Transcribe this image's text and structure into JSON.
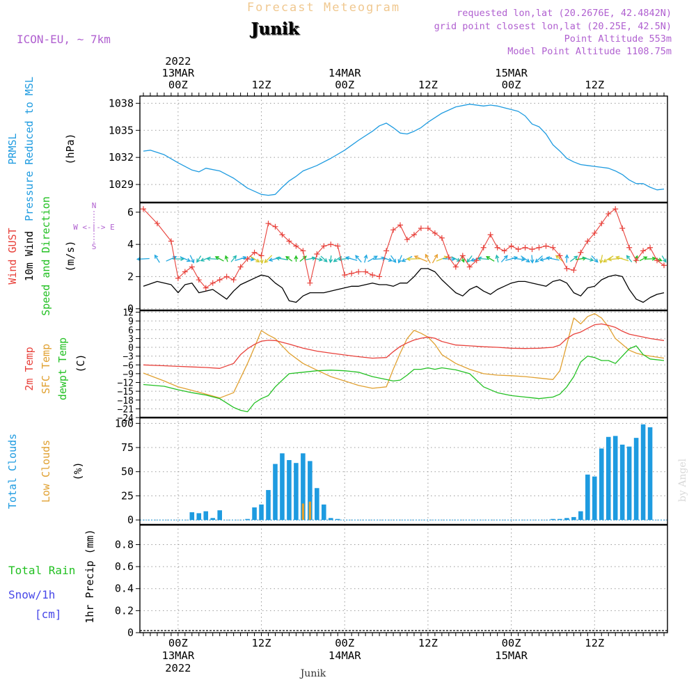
{
  "header": {
    "super_title": "Forecast Meteogram",
    "location": "Junik",
    "model": "ICON-EU, ~ 7km",
    "requested": "requested lon,lat (20.2676E, 42.4842N)",
    "grid_point": "grid point closest lon,lat (20.25E, 42.5N)",
    "point_altitude": "Point Altitude 553m",
    "model_altitude": "Model Point Altitude 1108.75m"
  },
  "time_axis": {
    "top_labels": [
      {
        "hour": 0,
        "lines": [
          "2022",
          "13MAR",
          "00Z"
        ]
      },
      {
        "hour": 12,
        "lines": [
          "12Z"
        ]
      },
      {
        "hour": 24,
        "lines": [
          "14MAR",
          "00Z"
        ]
      },
      {
        "hour": 36,
        "lines": [
          "12Z"
        ]
      },
      {
        "hour": 48,
        "lines": [
          "15MAR",
          "00Z"
        ]
      },
      {
        "hour": 60,
        "lines": [
          "12Z"
        ]
      }
    ],
    "bottom_labels": [
      {
        "hour": 0,
        "lines": [
          "00Z",
          "13MAR",
          "2022"
        ]
      },
      {
        "hour": 12,
        "lines": [
          "12Z"
        ]
      },
      {
        "hour": 24,
        "lines": [
          "00Z",
          "14MAR"
        ]
      },
      {
        "hour": 36,
        "lines": [
          "12Z"
        ]
      },
      {
        "hour": 48,
        "lines": [
          "00Z",
          "15MAR"
        ]
      },
      {
        "hour": 60,
        "lines": [
          "12Z"
        ]
      }
    ],
    "start_hour": -5.5,
    "end_hour": 70.5,
    "footer": "Junik"
  },
  "credit": "by Angel",
  "colors": {
    "pressure": "#1e9be0",
    "gust": "#e8403a",
    "wind": "#000000",
    "direction": "#22c022",
    "t2m": "#e8403a",
    "tsfc": "#e0a030",
    "dewpt": "#22c022",
    "total_clouds": "#1e9be0",
    "low_clouds": "#e0a030",
    "rain": "#22c022",
    "snow": "#4848e8",
    "header_purple": "#b060d0",
    "super_title": "#f0c890"
  },
  "panels": {
    "pressure": {
      "labels": [
        "PRMSL",
        "Pressure Reduced to MSL"
      ],
      "unit": "(hPa)"
    },
    "wind": {
      "labels": [
        "Wind GUST",
        "10m Wind",
        "Speed and Direction"
      ],
      "unit": "(m/s)",
      "compass": [
        "N",
        "W <-|-> E",
        "S"
      ]
    },
    "temp": {
      "labels": [
        "2m Temp",
        "SFC Temp",
        "dewpt Temp"
      ],
      "unit": "(C)"
    },
    "clouds": {
      "labels": [
        "Total Clouds",
        "Low Clouds"
      ],
      "unit": "(%)"
    },
    "precip": {
      "labels": [
        "Total  Rain",
        "Snow/1h",
        "[cm]"
      ],
      "unit": "1hr Precip (mm)"
    }
  },
  "chart_data": [
    {
      "type": "line",
      "name": "PRMSL",
      "ylabel": "(hPa)",
      "ylim": [
        1027,
        1038.8
      ],
      "yticks": [
        1029,
        1032,
        1035,
        1038
      ],
      "x": [
        -5,
        -4,
        -2,
        0,
        2,
        3,
        4,
        6,
        8,
        10,
        12,
        13,
        14,
        15,
        16,
        17,
        18,
        20,
        22,
        24,
        26,
        28,
        29,
        30,
        31,
        32,
        33,
        34,
        35,
        36,
        38,
        40,
        42,
        44,
        45,
        46,
        47,
        48,
        49,
        50,
        51,
        52,
        53,
        54,
        55,
        56,
        57,
        58,
        59,
        60,
        61,
        62,
        63,
        64,
        65,
        66,
        67,
        68,
        69,
        70
      ],
      "values": [
        1032.7,
        1032.8,
        1032.3,
        1031.4,
        1030.6,
        1030.4,
        1030.8,
        1030.5,
        1029.7,
        1028.6,
        1027.9,
        1027.8,
        1027.9,
        1028.7,
        1029.4,
        1029.9,
        1030.5,
        1031.1,
        1031.9,
        1032.8,
        1033.9,
        1034.9,
        1035.5,
        1035.8,
        1035.3,
        1034.7,
        1034.6,
        1034.9,
        1035.3,
        1035.9,
        1036.9,
        1037.6,
        1037.9,
        1037.7,
        1037.8,
        1037.7,
        1037.5,
        1037.3,
        1037.1,
        1036.6,
        1035.7,
        1035.4,
        1034.6,
        1033.4,
        1032.7,
        1031.9,
        1031.5,
        1031.2,
        1031.1,
        1031.0,
        1030.9,
        1030.8,
        1030.5,
        1030.1,
        1029.5,
        1029.1,
        1029.1,
        1028.7,
        1028.4,
        1028.5
      ]
    },
    {
      "type": "line",
      "name": "Wind",
      "ylabel": "(m/s)",
      "ylim": [
        -0.1,
        6.6
      ],
      "yticks": [
        0,
        2,
        4,
        6
      ],
      "x": [
        -5,
        -3,
        -1,
        0,
        1,
        2,
        3,
        4,
        5,
        6,
        7,
        8,
        9,
        10,
        11,
        12,
        13,
        14,
        15,
        16,
        17,
        18,
        19,
        20,
        21,
        22,
        23,
        24,
        25,
        26,
        27,
        28,
        29,
        30,
        31,
        32,
        33,
        34,
        35,
        36,
        37,
        38,
        39,
        40,
        41,
        42,
        43,
        44,
        45,
        46,
        47,
        48,
        49,
        50,
        51,
        52,
        53,
        54,
        55,
        56,
        57,
        58,
        59,
        60,
        61,
        62,
        63,
        64,
        65,
        66,
        67,
        68,
        69,
        70
      ],
      "gust": [
        6.2,
        5.3,
        4.2,
        1.9,
        2.3,
        2.6,
        1.8,
        1.3,
        1.6,
        1.8,
        2.0,
        1.8,
        2.6,
        3.1,
        3.5,
        3.3,
        5.3,
        5.1,
        4.6,
        4.2,
        3.9,
        3.6,
        1.6,
        3.4,
        3.9,
        4.0,
        3.9,
        2.1,
        2.2,
        2.3,
        2.3,
        2.1,
        2.0,
        3.6,
        4.9,
        5.2,
        4.3,
        4.6,
        5.0,
        5.0,
        4.7,
        4.4,
        3.2,
        2.6,
        3.3,
        2.6,
        3.0,
        3.8,
        4.6,
        3.8,
        3.6,
        3.9,
        3.7,
        3.8,
        3.7,
        3.8,
        3.9,
        3.8,
        3.3,
        2.5,
        2.4,
        3.5,
        4.2,
        4.7,
        5.3,
        5.9,
        6.2,
        5.0,
        3.8,
        3.0,
        3.6,
        3.8,
        3.0,
        2.7
      ],
      "speed": [
        1.4,
        1.7,
        1.5,
        1.0,
        1.5,
        1.6,
        1.0,
        1.1,
        1.2,
        0.9,
        0.6,
        1.1,
        1.5,
        1.7,
        1.9,
        2.1,
        2.0,
        1.6,
        1.3,
        0.5,
        0.4,
        0.8,
        1.0,
        1.0,
        1.0,
        1.1,
        1.2,
        1.3,
        1.4,
        1.4,
        1.5,
        1.6,
        1.5,
        1.5,
        1.4,
        1.6,
        1.6,
        2.0,
        2.5,
        2.5,
        2.3,
        1.8,
        1.4,
        1.0,
        0.8,
        1.2,
        1.4,
        1.1,
        0.9,
        1.2,
        1.4,
        1.6,
        1.7,
        1.7,
        1.6,
        1.5,
        1.4,
        1.7,
        1.8,
        1.6,
        1.0,
        0.8,
        1.3,
        1.4,
        1.8,
        2.0,
        2.1,
        2.0,
        1.2,
        0.6,
        0.4,
        0.7,
        0.9,
        1.0
      ],
      "direction_arrows": "one arrow per hour, colored by speed, plotted near the 3 m/s level"
    },
    {
      "type": "line",
      "name": "Temperature",
      "ylabel": "(C)",
      "ylim": [
        -24,
        12.6
      ],
      "yticks": [
        12,
        9,
        6,
        3,
        0,
        -3,
        -6,
        -9,
        -12,
        -15,
        -18,
        -21,
        -24
      ],
      "x": [
        -5,
        -2,
        0,
        2,
        4,
        6,
        8,
        9,
        10,
        11,
        12,
        13,
        14,
        16,
        18,
        20,
        22,
        24,
        26,
        28,
        30,
        31,
        32,
        33,
        34,
        35,
        36,
        37,
        38,
        40,
        42,
        44,
        46,
        48,
        50,
        52,
        54,
        55,
        56,
        57,
        58,
        59,
        60,
        61,
        62,
        63,
        64,
        65,
        66,
        67,
        68,
        70
      ],
      "t2m": [
        -6.0,
        -6.3,
        -6.5,
        -6.7,
        -6.9,
        -7.2,
        -5.5,
        -2.5,
        -0.5,
        1.0,
        2.1,
        2.4,
        2.3,
        1.1,
        -0.3,
        -1.3,
        -2.0,
        -2.6,
        -3.2,
        -3.7,
        -3.5,
        -1.5,
        0.3,
        1.5,
        2.5,
        3.1,
        3.5,
        3.1,
        2.0,
        0.8,
        0.5,
        0.2,
        0.0,
        -0.3,
        -0.4,
        -0.3,
        0.0,
        0.8,
        3.0,
        4.5,
        5.2,
        6.5,
        7.7,
        8.0,
        7.5,
        6.8,
        5.5,
        4.5,
        4.0,
        3.5,
        3.0,
        2.3
      ],
      "tsfc": [
        -8.8,
        -11.5,
        -13.5,
        -14.7,
        -16.0,
        -17.3,
        -15.5,
        -10.5,
        -5.5,
        0.0,
        5.7,
        4.2,
        3.0,
        -2.0,
        -5.5,
        -7.8,
        -10.0,
        -11.5,
        -13.0,
        -14.0,
        -13.5,
        -7.5,
        -2.0,
        3.0,
        5.8,
        4.8,
        3.5,
        1.0,
        -2.5,
        -5.5,
        -7.5,
        -9.0,
        -9.5,
        -9.7,
        -10.0,
        -10.5,
        -11.0,
        -8.0,
        1.0,
        10.0,
        8.0,
        10.5,
        11.5,
        10.0,
        7.0,
        3.0,
        1.0,
        -1.0,
        -2.0,
        -2.6,
        -3.0,
        -3.7
      ],
      "dewpt": [
        -12.7,
        -13.3,
        -14.5,
        -15.5,
        -16.3,
        -17.5,
        -20.5,
        -21.5,
        -22.0,
        -19.0,
        -17.5,
        -16.5,
        -13.5,
        -9.0,
        -8.5,
        -8.0,
        -7.8,
        -8.0,
        -8.5,
        -10.0,
        -11.0,
        -11.5,
        -11.2,
        -9.5,
        -7.5,
        -7.5,
        -7.0,
        -7.5,
        -7.0,
        -7.7,
        -9.0,
        -13.5,
        -15.5,
        -16.5,
        -17.0,
        -17.5,
        -17.0,
        -16.0,
        -13.5,
        -10.0,
        -5.0,
        -3.0,
        -3.5,
        -4.5,
        -4.5,
        -5.5,
        -3.0,
        -0.5,
        0.5,
        -2.5,
        -4.0,
        -4.5
      ]
    },
    {
      "type": "bar",
      "name": "Clouds",
      "ylabel": "(%)",
      "ylim": [
        -5,
        106
      ],
      "yticks": [
        0,
        25,
        50,
        75,
        100
      ],
      "x": [
        -5,
        -4,
        -3,
        -2,
        -1,
        0,
        1,
        2,
        3,
        4,
        5,
        6,
        7,
        8,
        9,
        10,
        11,
        12,
        13,
        14,
        15,
        16,
        17,
        18,
        19,
        20,
        21,
        22,
        23,
        24,
        25,
        26,
        27,
        28,
        29,
        30,
        31,
        32,
        33,
        34,
        35,
        36,
        37,
        38,
        39,
        40,
        41,
        42,
        43,
        44,
        45,
        46,
        47,
        48,
        49,
        50,
        51,
        52,
        53,
        54,
        55,
        56,
        57,
        58,
        59,
        60,
        61,
        62,
        63,
        64,
        65,
        66,
        67,
        68,
        69,
        70
      ],
      "total_clouds": [
        0,
        0,
        0,
        0,
        0,
        0,
        0,
        8,
        7,
        9,
        2,
        10,
        0,
        0,
        0,
        1,
        13,
        16,
        31,
        58,
        69,
        62,
        59,
        69,
        61,
        33,
        16,
        2,
        1,
        0,
        0,
        0,
        0,
        0,
        0,
        0,
        0,
        0,
        0,
        0,
        0,
        0,
        0,
        0,
        0,
        0,
        0,
        0,
        0,
        0,
        0,
        0,
        0,
        0,
        0,
        0,
        0,
        0,
        0,
        1,
        1,
        2,
        3,
        9,
        47,
        45,
        74,
        86,
        87,
        78,
        76,
        85,
        99,
        96,
        0,
        0
      ],
      "low_clouds": [
        0,
        0,
        0,
        0,
        0,
        0,
        0,
        0,
        0,
        0,
        0,
        0,
        0,
        0,
        0,
        0,
        0,
        0,
        0,
        0,
        0,
        0,
        0,
        17,
        19,
        0,
        0,
        0,
        0,
        0,
        0,
        0,
        0,
        0,
        0,
        0,
        0,
        0,
        0,
        0,
        0,
        0,
        0,
        0,
        0,
        0,
        0,
        0,
        0,
        0,
        0,
        0,
        0,
        0,
        0,
        0,
        0,
        0,
        0,
        0,
        0,
        0,
        0,
        0,
        0,
        0,
        0,
        0,
        0,
        0,
        0,
        0,
        0,
        0,
        0,
        0
      ]
    },
    {
      "type": "bar",
      "name": "Precipitation",
      "ylabel": "1hr Precip (mm)",
      "ylim": [
        0,
        0.98
      ],
      "yticks": [
        0,
        0.2,
        0.4,
        0.6,
        0.8
      ],
      "rain": [],
      "snow": []
    }
  ]
}
